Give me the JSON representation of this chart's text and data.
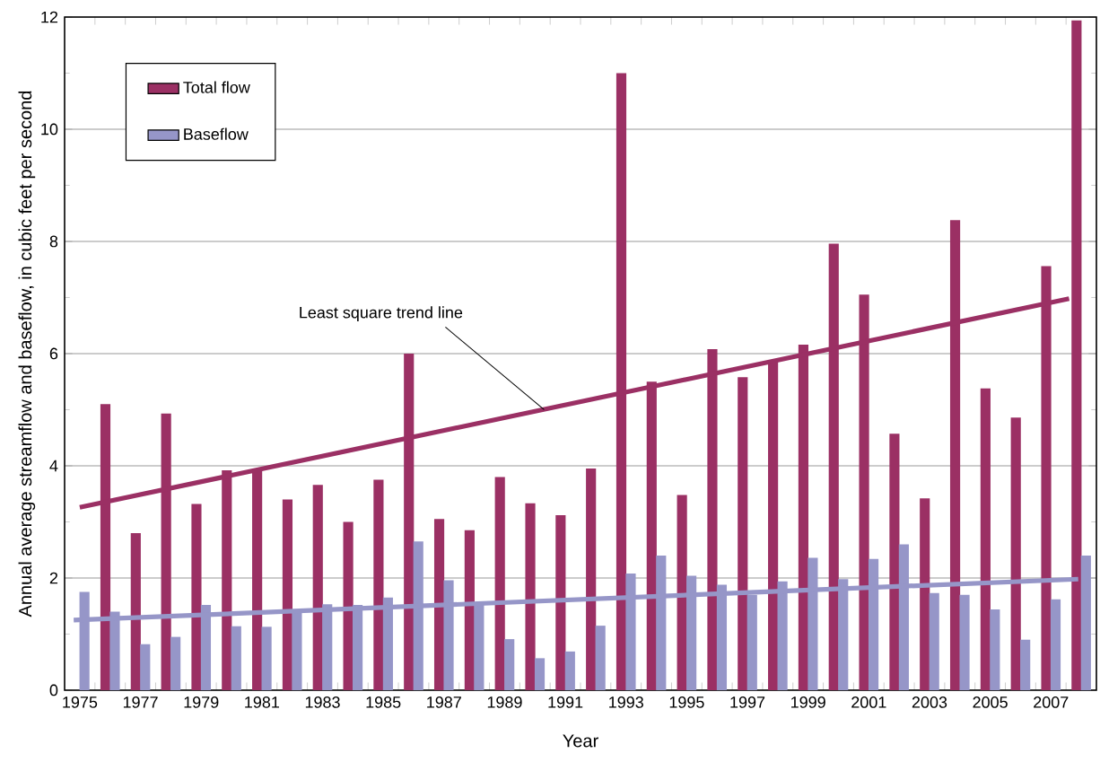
{
  "chart_data": {
    "type": "bar",
    "xlabel": "Year",
    "ylabel": "Annual average streamflow and baseflow, in cubic feet per second",
    "x": [
      1975,
      1976,
      1977,
      1978,
      1979,
      1980,
      1981,
      1982,
      1983,
      1984,
      1985,
      1986,
      1987,
      1988,
      1989,
      1990,
      1991,
      1992,
      1993,
      1994,
      1995,
      1996,
      1997,
      1998,
      1999,
      2000,
      2001,
      2002,
      2003,
      2004,
      2005,
      2006,
      2007,
      2008
    ],
    "series": [
      {
        "name": "Total flow",
        "color": "#9b3064",
        "values": [
          null,
          5.1,
          2.8,
          4.93,
          3.32,
          3.92,
          3.95,
          3.4,
          3.66,
          3.0,
          3.75,
          6.0,
          3.05,
          2.85,
          3.8,
          3.33,
          3.12,
          3.95,
          11.0,
          5.5,
          3.48,
          6.08,
          5.58,
          5.86,
          6.16,
          7.96,
          7.05,
          4.57,
          3.42,
          8.38,
          5.38,
          4.86,
          7.56,
          11.94
        ]
      },
      {
        "name": "Baseflow",
        "color": "#9696c8",
        "values": [
          1.75,
          1.4,
          0.82,
          0.95,
          1.52,
          1.14,
          1.13,
          1.42,
          1.53,
          1.52,
          1.65,
          2.65,
          1.96,
          1.55,
          0.91,
          0.57,
          0.69,
          1.15,
          2.08,
          2.4,
          2.04,
          1.88,
          1.7,
          1.94,
          2.36,
          1.98,
          2.34,
          2.6,
          1.73,
          1.7,
          1.44,
          0.9,
          1.62,
          2.4
        ]
      },
      {
        "type": "line",
        "color": "#9b3064",
        "x": [
          1975,
          2007.6
        ],
        "values": [
          3.26,
          6.98
        ]
      },
      {
        "type": "line",
        "color": "#9696c8",
        "x": [
          1974.8,
          2007.9
        ],
        "values": [
          1.25,
          1.98
        ]
      }
    ],
    "annotations": [
      {
        "text": "Least square trend line",
        "x": 1990.3,
        "y": 5.0
      }
    ],
    "xlim": [
      1974.5,
      2008.5
    ],
    "xticks": [
      1975,
      1977,
      1979,
      1981,
      1983,
      1985,
      1987,
      1989,
      1991,
      1993,
      1995,
      1997,
      1999,
      2001,
      2003,
      2005,
      2007,
      {
        "value": 1975.5,
        "label": null
      },
      {
        "value": 1976.5,
        "label": null
      },
      {
        "value": 1977.5,
        "label": null
      },
      {
        "value": 1978.5,
        "label": null
      },
      {
        "value": 1979.5,
        "label": null
      },
      {
        "value": 1980.5,
        "label": null
      },
      {
        "value": 1981.5,
        "label": null
      },
      {
        "value": 1982.5,
        "label": null
      },
      {
        "value": 1983.5,
        "label": null
      },
      {
        "value": 1984.5,
        "label": null
      },
      {
        "value": 1985.5,
        "label": null
      },
      {
        "value": 1986.5,
        "label": null
      },
      {
        "value": 1987.5,
        "label": null
      },
      {
        "value": 1988.5,
        "label": null
      },
      {
        "value": 1989.5,
        "label": null
      },
      {
        "value": 1990.5,
        "label": null
      },
      {
        "value": 1991.5,
        "label": null
      },
      {
        "value": 1992.5,
        "label": null
      },
      {
        "value": 1993.5,
        "label": null
      },
      {
        "value": 1994.5,
        "label": null
      },
      {
        "value": 1995.5,
        "label": null
      },
      {
        "value": 1996.5,
        "label": null
      },
      {
        "value": 1997.5,
        "label": null
      },
      {
        "value": 1998.5,
        "label": null
      },
      {
        "value": 1999.5,
        "label": null
      },
      {
        "value": 2000.5,
        "label": null
      },
      {
        "value": 2001.5,
        "label": null
      },
      {
        "value": 2002.5,
        "label": null
      },
      {
        "value": 2003.5,
        "label": null
      },
      {
        "value": 2004.5,
        "label": null
      },
      {
        "value": 2005.5,
        "label": null
      },
      {
        "value": 2006.5,
        "label": null
      },
      {
        "value": 2007.5,
        "label": null
      }
    ],
    "ylim": [
      0,
      12
    ],
    "yticks": [
      0,
      2,
      4,
      6,
      8,
      10,
      12
    ],
    "grid": "y",
    "legend": "top left",
    "marker": "none",
    "line_style": "solid"
  }
}
